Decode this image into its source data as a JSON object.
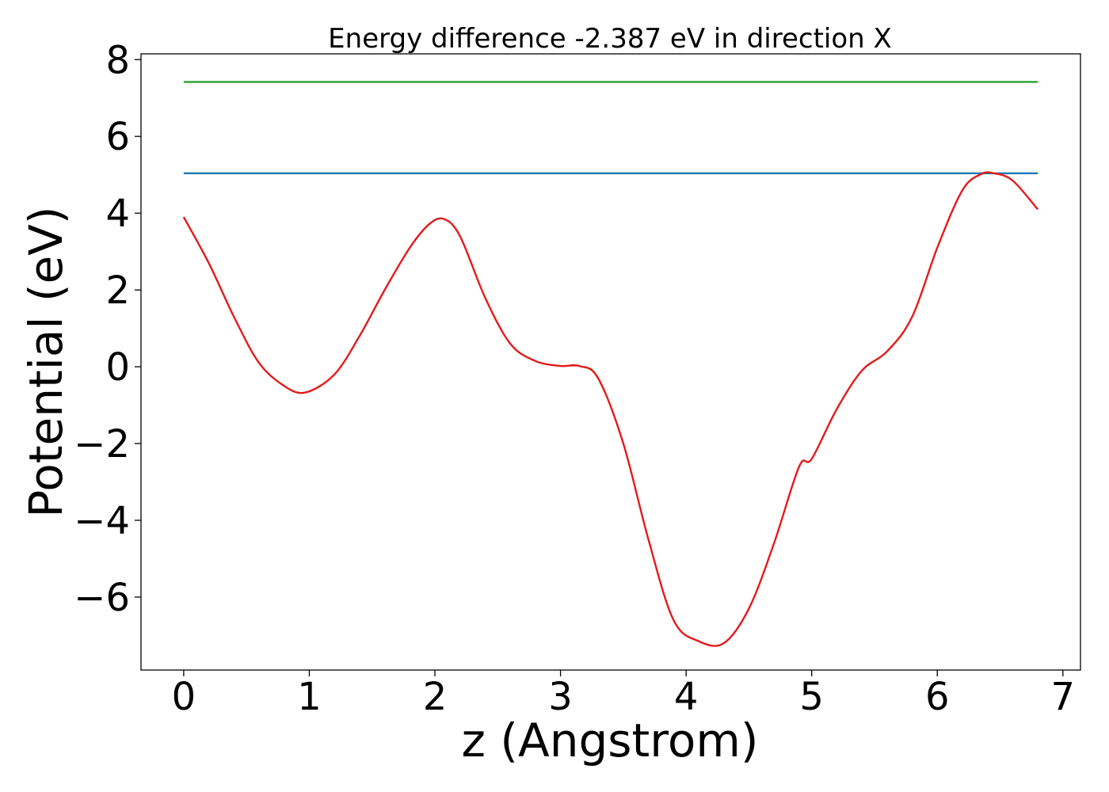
{
  "chart_data": {
    "type": "line",
    "title": "Energy difference -2.387 eV in direction X",
    "xlabel": "z (Angstrom)",
    "ylabel": "Potential (eV)",
    "xlim": [
      -0.34,
      7.14
    ],
    "ylim": [
      -7.9,
      8.15
    ],
    "xticks": [
      0,
      1,
      2,
      3,
      4,
      5,
      6,
      7
    ],
    "yticks": [
      -6,
      -4,
      -2,
      0,
      2,
      4,
      6,
      8
    ],
    "xtick_labels": [
      "0",
      "1",
      "2",
      "3",
      "4",
      "5",
      "6",
      "7"
    ],
    "ytick_labels": [
      "−6",
      "−4",
      "−2",
      "0",
      "2",
      "4",
      "6",
      "8"
    ],
    "grid": false,
    "series": [
      {
        "color": "#2ca02c",
        "x": [
          0,
          6.8
        ],
        "y": [
          7.42,
          7.42
        ]
      },
      {
        "color": "#1f77b4",
        "x": [
          0,
          6.8
        ],
        "y": [
          5.04,
          5.04
        ]
      },
      {
        "color": "#e41a1c",
        "x": [
          0,
          0.2,
          0.4,
          0.6,
          0.8,
          0.97,
          1.2,
          1.4,
          1.6,
          1.8,
          1.95,
          2.07,
          2.2,
          2.4,
          2.6,
          2.8,
          3.0,
          3.15,
          3.3,
          3.5,
          3.7,
          3.9,
          4.1,
          4.3,
          4.5,
          4.7,
          4.9,
          5.0,
          5.2,
          5.4,
          5.6,
          5.8,
          6.0,
          6.2,
          6.35,
          6.45,
          6.6,
          6.8
        ],
        "y": [
          3.9,
          2.7,
          1.3,
          0.1,
          -0.5,
          -0.67,
          -0.2,
          0.8,
          2.0,
          3.1,
          3.7,
          3.85,
          3.4,
          1.8,
          0.6,
          0.15,
          0.02,
          0.02,
          -0.3,
          -2.0,
          -4.5,
          -6.6,
          -7.15,
          -7.2,
          -6.3,
          -4.6,
          -2.6,
          -2.4,
          -1.1,
          -0.1,
          0.4,
          1.3,
          3.1,
          4.6,
          5.02,
          5.04,
          4.85,
          4.1
        ]
      }
    ]
  }
}
